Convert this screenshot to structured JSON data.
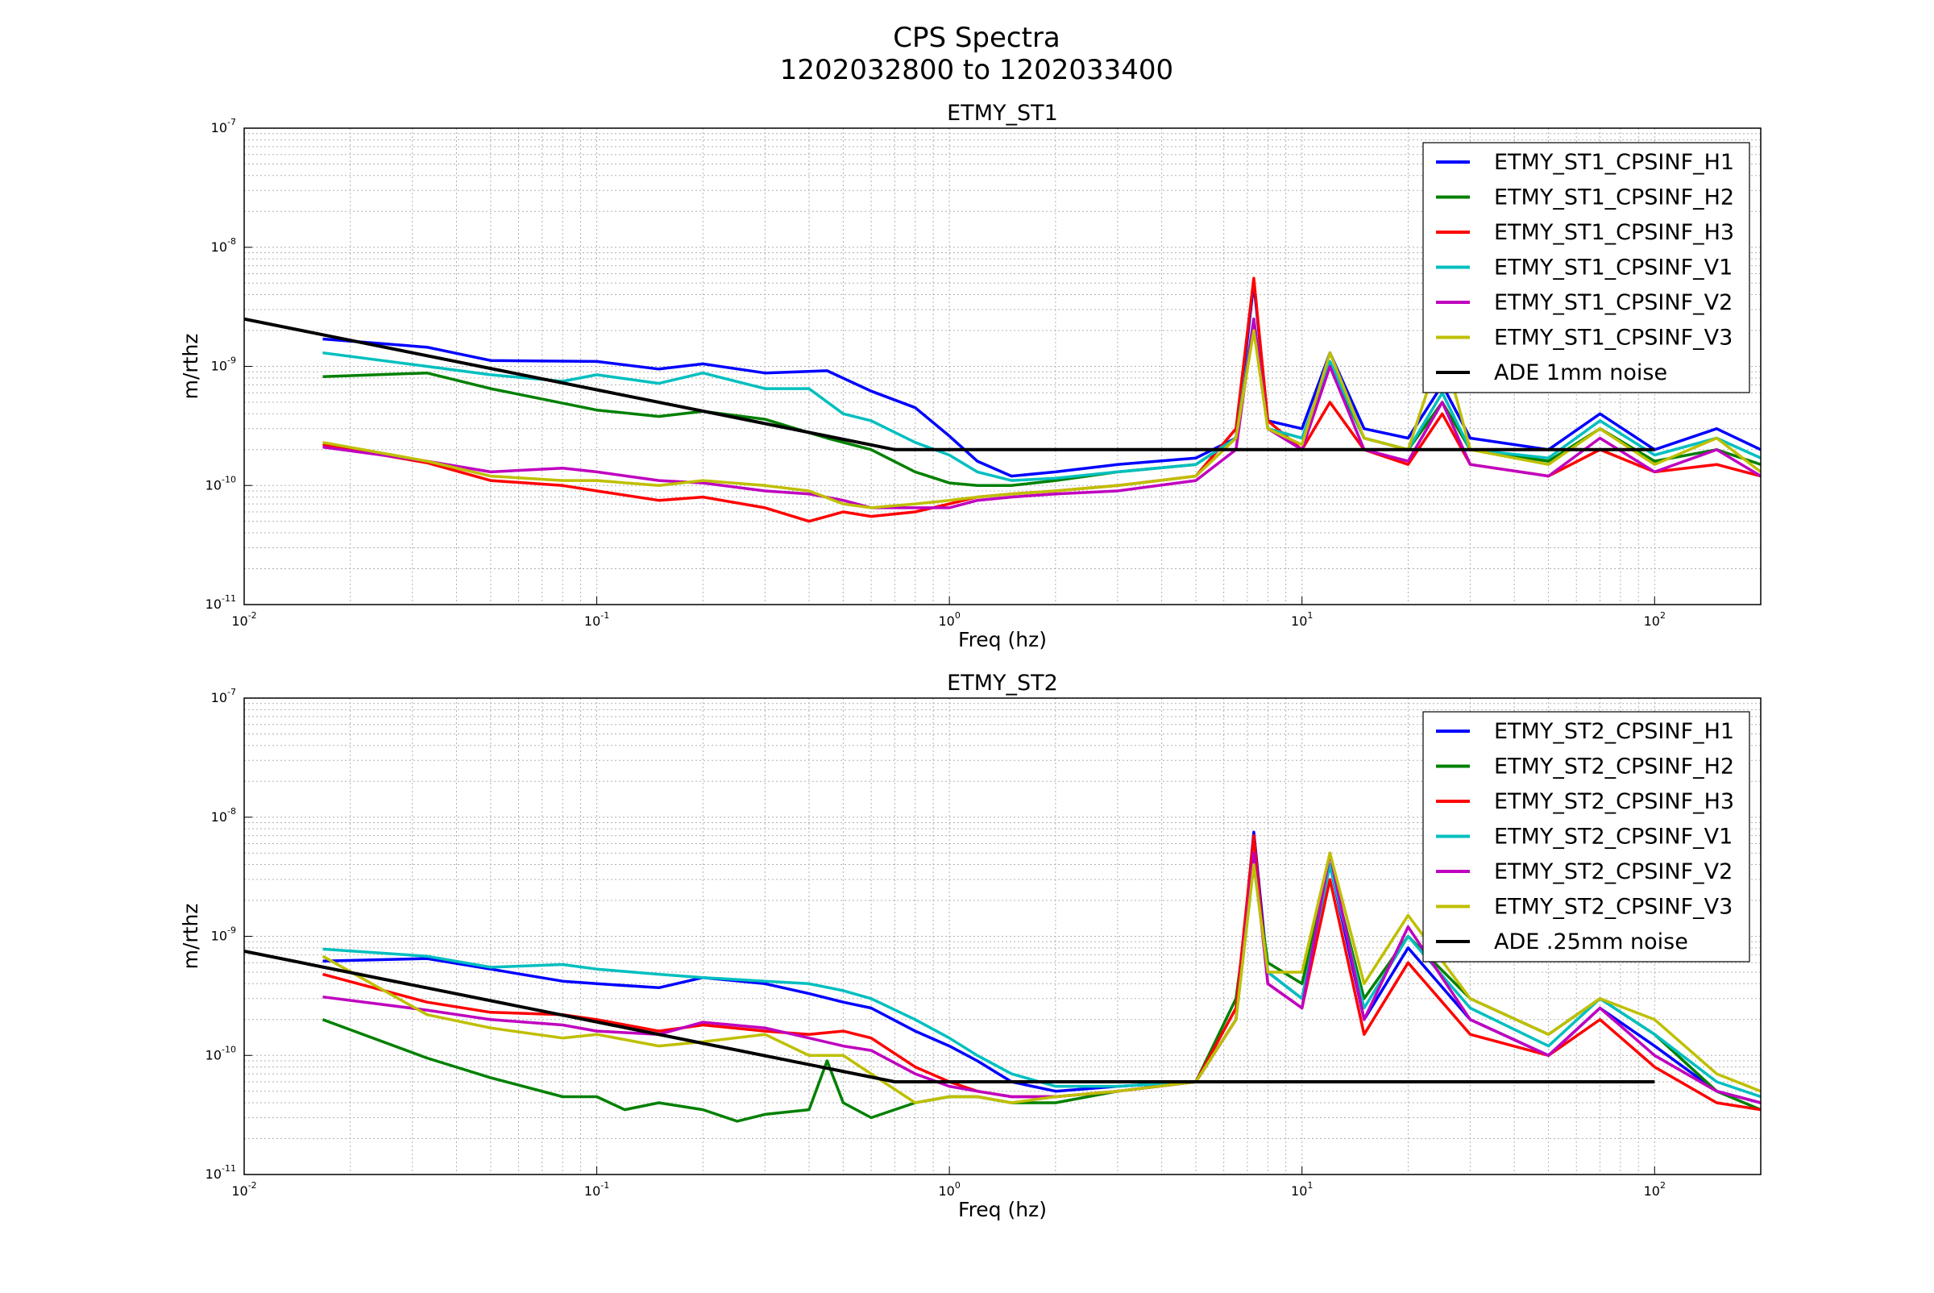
{
  "figure": {
    "title_line1": "CPS Spectra",
    "title_line2": "1202032800 to 1202033400"
  },
  "chart_data": [
    {
      "type": "line",
      "title": "ETMY_ST1",
      "xlabel": "Freq (hz)",
      "ylabel": "m/rthz",
      "xscale": "log",
      "yscale": "log",
      "xlim": [
        0.01,
        200
      ],
      "ylim": [
        1e-11,
        1e-07
      ],
      "grid": true,
      "legend_position": "top-right",
      "x_tick_labels": [
        "10^-2",
        "10^-1",
        "10^0",
        "10^1",
        "10^2"
      ],
      "y_tick_labels": [
        "10^-11",
        "10^-10",
        "10^-9",
        "10^-8",
        "10^-7"
      ],
      "series": [
        {
          "name": "ETMY_ST1_CPSINF_H1",
          "color": "#0000ff",
          "x": [
            0.0167,
            0.033,
            0.05,
            0.1,
            0.15,
            0.2,
            0.3,
            0.45,
            0.6,
            0.8,
            1.0,
            1.2,
            1.5,
            2,
            3,
            5,
            6.5,
            7.3,
            8,
            10,
            12,
            15,
            20,
            25,
            30,
            50,
            70,
            100,
            150,
            200
          ],
          "y": [
            1.7e-09,
            1.45e-09,
            1.12e-09,
            1.1e-09,
            9.5e-10,
            1.05e-09,
            8.8e-10,
            9.2e-10,
            6.2e-10,
            4.5e-10,
            2.6e-10,
            1.6e-10,
            1.2e-10,
            1.3e-10,
            1.5e-10,
            1.7e-10,
            2.5e-10,
            5e-09,
            3.5e-10,
            3e-10,
            1.3e-09,
            3e-10,
            2.5e-10,
            7e-10,
            2.5e-10,
            2e-10,
            4e-10,
            2e-10,
            3e-10,
            2e-10
          ]
        },
        {
          "name": "ETMY_ST1_CPSINF_H2",
          "color": "#008000",
          "x": [
            0.0167,
            0.033,
            0.05,
            0.1,
            0.15,
            0.2,
            0.3,
            0.45,
            0.6,
            0.8,
            1.0,
            1.2,
            1.5,
            2,
            3,
            5,
            6.5,
            7.3,
            8,
            10,
            12,
            15,
            20,
            25,
            30,
            50,
            70,
            100,
            150,
            200
          ],
          "y": [
            8.2e-10,
            8.8e-10,
            6.5e-10,
            4.3e-10,
            3.8e-10,
            4.2e-10,
            3.6e-10,
            2.5e-10,
            2e-10,
            1.3e-10,
            1.05e-10,
            1e-10,
            1e-10,
            1.1e-10,
            1.3e-10,
            1.5e-10,
            2.5e-10,
            2.5e-09,
            3e-10,
            2.5e-10,
            1e-09,
            2.5e-10,
            2e-10,
            5e-10,
            2e-10,
            1.6e-10,
            3e-10,
            1.6e-10,
            2e-10,
            1.5e-10
          ]
        },
        {
          "name": "ETMY_ST1_CPSINF_H3",
          "color": "#ff0000",
          "x": [
            0.0167,
            0.033,
            0.05,
            0.08,
            0.1,
            0.15,
            0.2,
            0.3,
            0.4,
            0.5,
            0.6,
            0.8,
            1.0,
            1.2,
            1.5,
            2,
            3,
            5,
            6.5,
            7.3,
            8,
            10,
            12,
            15,
            20,
            25,
            30,
            50,
            70,
            100,
            150,
            200
          ],
          "y": [
            2.2e-10,
            1.55e-10,
            1.1e-10,
            1e-10,
            9e-11,
            7.5e-11,
            8e-11,
            6.5e-11,
            5e-11,
            6e-11,
            5.5e-11,
            6e-11,
            7e-11,
            8e-11,
            8.5e-11,
            9e-11,
            1e-10,
            1.2e-10,
            3e-10,
            5.5e-09,
            3.5e-10,
            2e-10,
            5e-10,
            2e-10,
            1.5e-10,
            4e-10,
            1.5e-10,
            1.2e-10,
            2e-10,
            1.3e-10,
            1.5e-10,
            1.2e-10
          ]
        },
        {
          "name": "ETMY_ST1_CPSINF_V1",
          "color": "#00bfbf",
          "x": [
            0.0167,
            0.033,
            0.05,
            0.08,
            0.1,
            0.15,
            0.2,
            0.3,
            0.4,
            0.5,
            0.6,
            0.8,
            1.0,
            1.2,
            1.5,
            2,
            3,
            5,
            6.5,
            7.3,
            8,
            10,
            12,
            15,
            20,
            25,
            30,
            50,
            70,
            100,
            150,
            200
          ],
          "y": [
            1.3e-09,
            1e-09,
            8.5e-10,
            7.5e-10,
            8.5e-10,
            7.2e-10,
            8.8e-10,
            6.5e-10,
            6.5e-10,
            4e-10,
            3.5e-10,
            2.3e-10,
            1.8e-10,
            1.3e-10,
            1.1e-10,
            1.15e-10,
            1.3e-10,
            1.5e-10,
            2.5e-10,
            2.5e-09,
            3e-10,
            2.5e-10,
            1.1e-09,
            2.5e-10,
            2e-10,
            6e-10,
            2e-10,
            1.7e-10,
            3.5e-10,
            1.8e-10,
            2.5e-10,
            1.7e-10
          ]
        },
        {
          "name": "ETMY_ST1_CPSINF_V2",
          "color": "#bf00bf",
          "x": [
            0.0167,
            0.033,
            0.05,
            0.08,
            0.1,
            0.15,
            0.2,
            0.3,
            0.4,
            0.5,
            0.6,
            0.8,
            1.0,
            1.2,
            1.5,
            2,
            3,
            5,
            6.5,
            7.3,
            8,
            10,
            12,
            15,
            20,
            25,
            30,
            50,
            70,
            100,
            150,
            200
          ],
          "y": [
            2.1e-10,
            1.6e-10,
            1.3e-10,
            1.4e-10,
            1.3e-10,
            1.1e-10,
            1.05e-10,
            9e-11,
            8.5e-11,
            7.5e-11,
            6.5e-11,
            6.5e-11,
            6.5e-11,
            7.5e-11,
            8e-11,
            8.5e-11,
            9e-11,
            1.1e-10,
            2e-10,
            2.5e-09,
            3e-10,
            2e-10,
            1e-09,
            2e-10,
            1.6e-10,
            5e-10,
            1.5e-10,
            1.2e-10,
            2.5e-10,
            1.3e-10,
            2e-10,
            1.2e-10
          ]
        },
        {
          "name": "ETMY_ST1_CPSINF_V3",
          "color": "#bfbf00",
          "x": [
            0.0167,
            0.033,
            0.05,
            0.08,
            0.1,
            0.15,
            0.2,
            0.3,
            0.4,
            0.5,
            0.6,
            0.8,
            1.0,
            1.2,
            1.5,
            2,
            3,
            5,
            6.5,
            7.3,
            8,
            10,
            12,
            15,
            20,
            25,
            30,
            50,
            70,
            100,
            150,
            200
          ],
          "y": [
            2.3e-10,
            1.6e-10,
            1.2e-10,
            1.1e-10,
            1.1e-10,
            1e-10,
            1.1e-10,
            1e-10,
            9e-11,
            7e-11,
            6.5e-11,
            7e-11,
            7.5e-11,
            8e-11,
            8.5e-11,
            9e-11,
            1e-10,
            1.2e-10,
            2.5e-10,
            2e-09,
            3e-10,
            2.2e-10,
            1.3e-09,
            2.5e-10,
            2e-10,
            1.5e-09,
            2e-10,
            1.5e-10,
            3e-10,
            1.5e-10,
            2.5e-10,
            1.3e-10
          ]
        },
        {
          "name": "ADE 1mm noise",
          "color": "#000000",
          "x": [
            0.01,
            0.7,
            100
          ],
          "y": [
            2.5e-09,
            2e-10,
            2e-10
          ]
        }
      ]
    },
    {
      "type": "line",
      "title": "ETMY_ST2",
      "xlabel": "Freq (hz)",
      "ylabel": "m/rthz",
      "xscale": "log",
      "yscale": "log",
      "xlim": [
        0.01,
        200
      ],
      "ylim": [
        1e-11,
        1e-07
      ],
      "grid": true,
      "legend_position": "top-right",
      "x_tick_labels": [
        "10^-2",
        "10^-1",
        "10^0",
        "10^1",
        "10^2"
      ],
      "y_tick_labels": [
        "10^-11",
        "10^-10",
        "10^-9",
        "10^-8",
        "10^-7"
      ],
      "series": [
        {
          "name": "ETMY_ST2_CPSINF_H1",
          "color": "#0000ff",
          "x": [
            0.0167,
            0.033,
            0.05,
            0.08,
            0.1,
            0.15,
            0.2,
            0.3,
            0.4,
            0.5,
            0.6,
            0.8,
            1.0,
            1.2,
            1.5,
            2,
            3,
            5,
            6.5,
            7.3,
            8,
            10,
            12,
            15,
            20,
            30,
            50,
            70,
            100,
            150,
            200
          ],
          "y": [
            6.2e-10,
            6.5e-10,
            5.3e-10,
            4.2e-10,
            4e-10,
            3.7e-10,
            4.5e-10,
            4e-10,
            3.3e-10,
            2.8e-10,
            2.5e-10,
            1.6e-10,
            1.2e-10,
            9e-11,
            6e-11,
            5e-11,
            5.5e-11,
            6e-11,
            2e-10,
            7.5e-09,
            5e-10,
            3e-10,
            4e-09,
            2e-10,
            8e-10,
            2e-10,
            1e-10,
            2.5e-10,
            1.2e-10,
            5e-11,
            4e-11
          ]
        },
        {
          "name": "ETMY_ST2_CPSINF_H2",
          "color": "#008000",
          "x": [
            0.0167,
            0.033,
            0.05,
            0.08,
            0.1,
            0.12,
            0.15,
            0.2,
            0.25,
            0.3,
            0.4,
            0.45,
            0.5,
            0.6,
            0.8,
            1.0,
            1.2,
            1.5,
            2,
            3,
            5,
            6.5,
            7.3,
            8,
            10,
            12,
            15,
            20,
            30,
            50,
            70,
            100,
            150,
            200
          ],
          "y": [
            2e-10,
            9.5e-11,
            6.5e-11,
            4.5e-11,
            4.5e-11,
            3.5e-11,
            4e-11,
            3.5e-11,
            2.8e-11,
            3.2e-11,
            3.5e-11,
            9e-11,
            4e-11,
            3e-11,
            4e-11,
            4.5e-11,
            4.5e-11,
            4e-11,
            4e-11,
            5e-11,
            6e-11,
            3e-10,
            4e-09,
            6e-10,
            4e-10,
            4e-09,
            3e-10,
            1e-09,
            3e-10,
            1.5e-10,
            3e-10,
            1.5e-10,
            5e-11,
            3.5e-11
          ]
        },
        {
          "name": "ETMY_ST2_CPSINF_H3",
          "color": "#ff0000",
          "x": [
            0.0167,
            0.033,
            0.05,
            0.08,
            0.1,
            0.15,
            0.2,
            0.3,
            0.4,
            0.5,
            0.6,
            0.8,
            1.0,
            1.2,
            1.5,
            2,
            3,
            5,
            6.5,
            7.3,
            8,
            10,
            12,
            15,
            20,
            30,
            50,
            70,
            100,
            150,
            200
          ],
          "y": [
            4.8e-10,
            2.8e-10,
            2.3e-10,
            2.2e-10,
            2e-10,
            1.6e-10,
            1.8e-10,
            1.6e-10,
            1.5e-10,
            1.6e-10,
            1.4e-10,
            8e-11,
            6e-11,
            5e-11,
            4.5e-11,
            4.5e-11,
            5e-11,
            6e-11,
            2.5e-10,
            7e-09,
            4e-10,
            2.5e-10,
            3e-09,
            1.5e-10,
            6e-10,
            1.5e-10,
            1e-10,
            2e-10,
            8e-11,
            4e-11,
            3.5e-11
          ]
        },
        {
          "name": "ETMY_ST2_CPSINF_V1",
          "color": "#00bfbf",
          "x": [
            0.0167,
            0.033,
            0.05,
            0.08,
            0.1,
            0.15,
            0.2,
            0.3,
            0.4,
            0.5,
            0.6,
            0.8,
            1.0,
            1.2,
            1.5,
            2,
            3,
            5,
            6.5,
            7.3,
            8,
            10,
            12,
            15,
            20,
            30,
            50,
            70,
            100,
            150,
            200
          ],
          "y": [
            7.8e-10,
            6.8e-10,
            5.5e-10,
            5.8e-10,
            5.3e-10,
            4.8e-10,
            4.5e-10,
            4.2e-10,
            4e-10,
            3.5e-10,
            3e-10,
            2e-10,
            1.4e-10,
            1e-10,
            7e-11,
            5.5e-11,
            5.5e-11,
            6e-11,
            2e-10,
            4e-09,
            5e-10,
            3e-10,
            4e-09,
            2.5e-10,
            1e-09,
            2.5e-10,
            1.2e-10,
            3e-10,
            1.5e-10,
            6e-11,
            4.5e-11
          ]
        },
        {
          "name": "ETMY_ST2_CPSINF_V2",
          "color": "#bf00bf",
          "x": [
            0.0167,
            0.033,
            0.05,
            0.08,
            0.1,
            0.15,
            0.2,
            0.3,
            0.4,
            0.5,
            0.6,
            0.8,
            1.0,
            1.2,
            1.5,
            2,
            3,
            5,
            6.5,
            7.3,
            8,
            10,
            12,
            15,
            20,
            30,
            50,
            70,
            100,
            150,
            200
          ],
          "y": [
            3.1e-10,
            2.4e-10,
            2e-10,
            1.8e-10,
            1.6e-10,
            1.5e-10,
            1.9e-10,
            1.7e-10,
            1.4e-10,
            1.2e-10,
            1.1e-10,
            7e-11,
            5.5e-11,
            5e-11,
            4.5e-11,
            4.5e-11,
            5e-11,
            6e-11,
            2e-10,
            5e-09,
            4e-10,
            2.5e-10,
            5e-09,
            2e-10,
            1.2e-09,
            2e-10,
            1e-10,
            2.5e-10,
            1e-10,
            5e-11,
            4e-11
          ]
        },
        {
          "name": "ETMY_ST2_CPSINF_V3",
          "color": "#bfbf00",
          "x": [
            0.0167,
            0.033,
            0.05,
            0.08,
            0.1,
            0.15,
            0.2,
            0.3,
            0.4,
            0.5,
            0.6,
            0.8,
            1.0,
            1.2,
            1.5,
            2,
            3,
            5,
            6.5,
            7.3,
            8,
            10,
            12,
            15,
            20,
            30,
            50,
            70,
            100,
            150,
            200
          ],
          "y": [
            6.8e-10,
            2.2e-10,
            1.7e-10,
            1.4e-10,
            1.5e-10,
            1.2e-10,
            1.3e-10,
            1.5e-10,
            1e-10,
            1e-10,
            7e-11,
            4e-11,
            4.5e-11,
            4.5e-11,
            4e-11,
            4.5e-11,
            5e-11,
            6e-11,
            2e-10,
            4e-09,
            5e-10,
            5e-10,
            5e-09,
            4e-10,
            1.5e-09,
            3e-10,
            1.5e-10,
            3e-10,
            2e-10,
            7e-11,
            5e-11
          ]
        },
        {
          "name": "ADE .25mm noise",
          "color": "#000000",
          "x": [
            0.01,
            0.7,
            100
          ],
          "y": [
            7.5e-10,
            6e-11,
            6e-11
          ]
        }
      ]
    }
  ]
}
